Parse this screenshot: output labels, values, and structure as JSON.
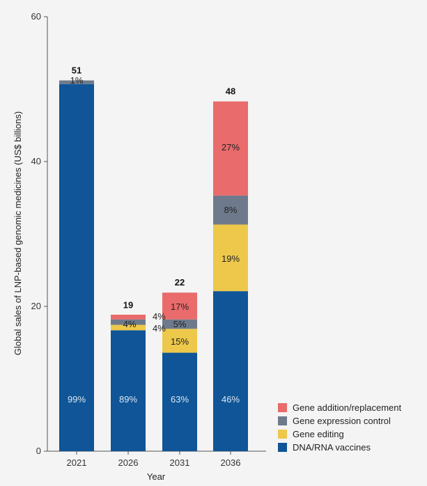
{
  "chart_data": {
    "type": "bar",
    "stacked": true,
    "title": "",
    "xlabel": "Year",
    "ylabel": "Global sales of LNP-based genomic medicines (US$ billions)",
    "ylim": [
      0,
      60
    ],
    "yticks": [
      "0",
      "20",
      "40",
      "60"
    ],
    "categories": [
      "2021",
      "2026",
      "2031",
      "2036"
    ],
    "totals": [
      "51",
      "19",
      "22",
      "48"
    ],
    "total_values": [
      51.2,
      18.8,
      21.9,
      48.3
    ],
    "series": [
      {
        "name": "DNA/RNA vaccines",
        "color": "#0f5597",
        "values": [
          50.7,
          16.7,
          13.6,
          22.1
        ],
        "labels": [
          "99%",
          "89%",
          "63%",
          "46%"
        ],
        "label_color": "#dce8f4"
      },
      {
        "name": "Gene editing",
        "color": "#edc84b",
        "values": [
          0,
          0.75,
          3.3,
          9.2
        ],
        "labels": [
          "",
          "4%",
          "15%",
          "19%"
        ],
        "label_color": "#222222"
      },
      {
        "name": "Gene expression control",
        "color": "#6e7a8c",
        "values": [
          0.5,
          0.75,
          1.3,
          4.0
        ],
        "labels": [
          "1%",
          "4%",
          "5%",
          "8%"
        ],
        "label_color": "#222222"
      },
      {
        "name": "Gene addition/replacement",
        "color": "#e96b6b",
        "values": [
          0,
          0.65,
          3.7,
          13.0
        ],
        "labels": [
          "",
          "",
          "17%",
          "27%"
        ],
        "label_color": "#222222"
      }
    ],
    "legend": {
      "placement": "bottom-right",
      "order": [
        "Gene addition/replacement",
        "Gene expression control",
        "Gene editing",
        "DNA/RNA vaccines"
      ]
    },
    "grid": false
  }
}
